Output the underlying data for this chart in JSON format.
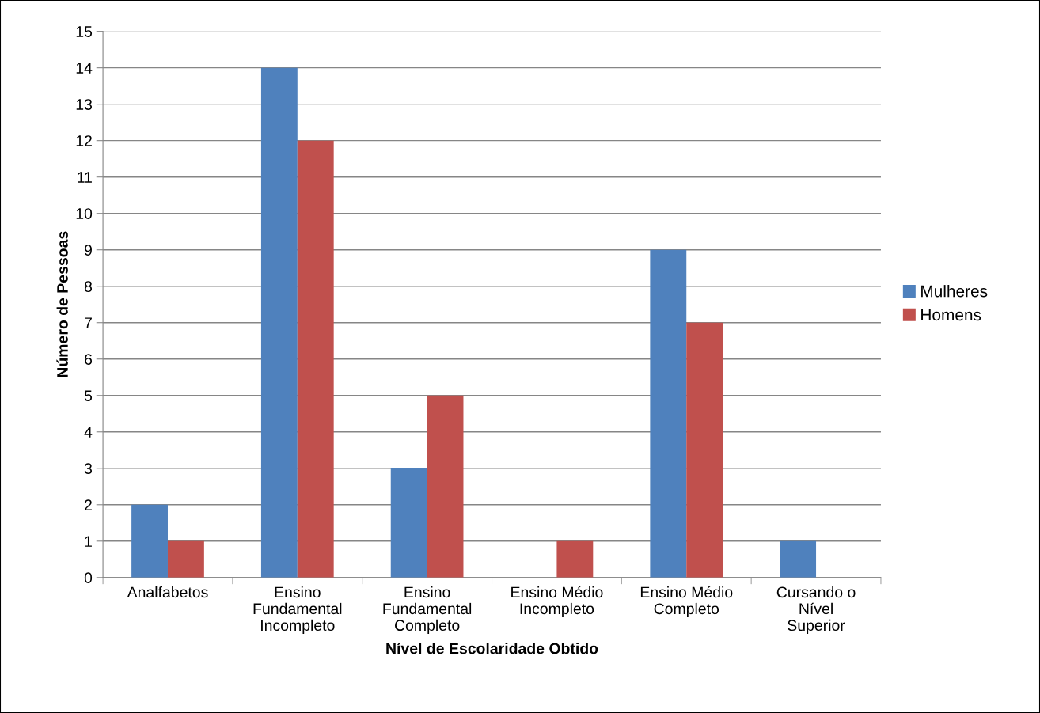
{
  "chart_data": {
    "type": "bar",
    "xlabel": "Nível de Escolaridade Obtido",
    "ylabel": "Número de Pessoas",
    "categories": [
      "Analfabetos",
      "Ensino\nFundamental\nIncompleto",
      "Ensino\nFundamental\nCompleto",
      "Ensino Médio\nIncompleto",
      "Ensino Médio\nCompleto",
      "Cursando o\nNível\nSuperior"
    ],
    "series": [
      {
        "name": "Mulheres",
        "color": "#4f81bd",
        "values": [
          2,
          14,
          3,
          0,
          9,
          1
        ]
      },
      {
        "name": "Homens",
        "color": "#c0504d",
        "values": [
          1,
          12,
          5,
          1,
          7,
          0
        ]
      }
    ],
    "ylim": [
      0,
      15
    ],
    "yticks": [
      0,
      1,
      2,
      3,
      4,
      5,
      6,
      7,
      8,
      9,
      10,
      11,
      12,
      13,
      14,
      15
    ],
    "grid": "y",
    "legend": "right"
  }
}
